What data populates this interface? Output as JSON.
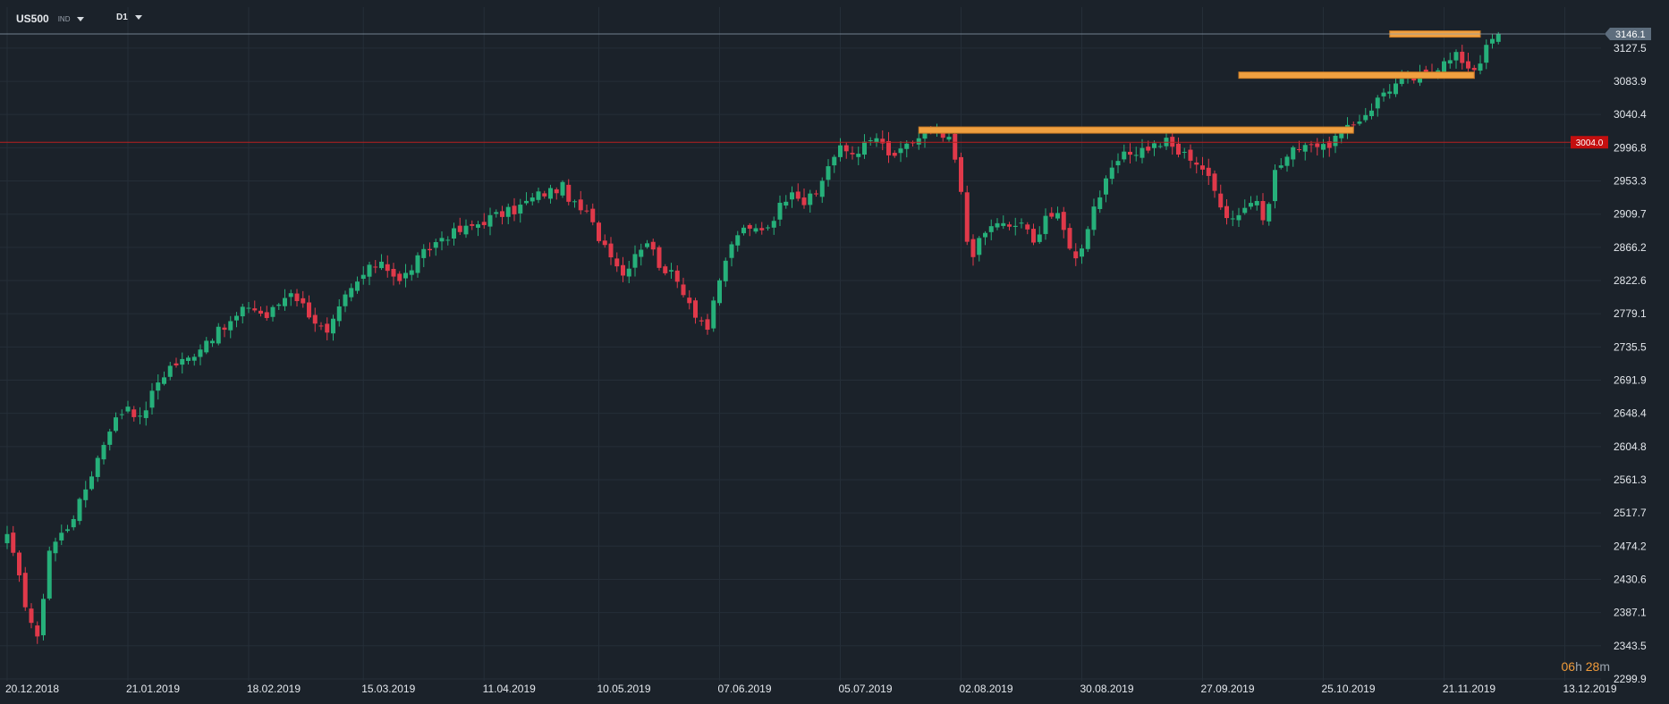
{
  "toolbar": {
    "symbol": "US500",
    "symbol_type": "IND",
    "timeframe": "D1"
  },
  "countdown": {
    "hours": "06",
    "h_unit": "h",
    "minutes": "28",
    "m_unit": "m"
  },
  "colors": {
    "background": "#1b222a",
    "grid": "#252e38",
    "up": "#26b07a",
    "down": "#e0394a",
    "zone": "#f0a040",
    "price_line": "#8fa0b0",
    "red_line": "#b81f1f"
  },
  "chart_data": {
    "type": "candlestick",
    "symbol": "US500",
    "timeframe": "D1",
    "ylim": [
      2290,
      3165
    ],
    "y_ticks": [
      "3127.5",
      "3083.9",
      "3040.4",
      "2996.8",
      "2953.3",
      "2909.7",
      "2866.2",
      "2822.6",
      "2779.1",
      "2735.5",
      "2691.9",
      "2648.4",
      "2604.8",
      "2561.3",
      "2517.7",
      "2474.2",
      "2430.6",
      "2387.1",
      "2343.5",
      "2299.9"
    ],
    "x_ticks": [
      "20.12.2018",
      "21.01.2019",
      "18.02.2019",
      "15.03.2019",
      "11.04.2019",
      "10.05.2019",
      "07.06.2019",
      "05.07.2019",
      "02.08.2019",
      "30.08.2019",
      "27.09.2019",
      "25.10.2019",
      "21.11.2019",
      "13.12.2019"
    ],
    "x_tick_index": [
      0,
      20,
      40,
      59,
      79,
      98,
      118,
      138,
      158,
      178,
      198,
      218,
      238,
      258
    ],
    "last_price": {
      "value": 3146.1,
      "label": "3146.1"
    },
    "horizontal_line": {
      "value": 3004.0,
      "label": "3004.0"
    },
    "resistance_zones": [
      {
        "from_index": 151,
        "to_index": 223,
        "value": 3020
      },
      {
        "from_index": 204,
        "to_index": 243,
        "value": 3092
      },
      {
        "from_index": 229,
        "to_index": 244,
        "value": 3146
      }
    ],
    "close_anchors": [
      [
        0,
        2490
      ],
      [
        3,
        2400
      ],
      [
        5,
        2350
      ],
      [
        7,
        2470
      ],
      [
        10,
        2500
      ],
      [
        12,
        2530
      ],
      [
        15,
        2590
      ],
      [
        17,
        2630
      ],
      [
        20,
        2660
      ],
      [
        22,
        2640
      ],
      [
        25,
        2690
      ],
      [
        27,
        2710
      ],
      [
        30,
        2720
      ],
      [
        33,
        2745
      ],
      [
        36,
        2760
      ],
      [
        40,
        2790
      ],
      [
        43,
        2775
      ],
      [
        47,
        2810
      ],
      [
        50,
        2780
      ],
      [
        53,
        2750
      ],
      [
        56,
        2800
      ],
      [
        59,
        2830
      ],
      [
        62,
        2850
      ],
      [
        65,
        2820
      ],
      [
        68,
        2850
      ],
      [
        72,
        2880
      ],
      [
        76,
        2890
      ],
      [
        80,
        2905
      ],
      [
        84,
        2915
      ],
      [
        88,
        2935
      ],
      [
        92,
        2945
      ],
      [
        94,
        2920
      ],
      [
        96,
        2910
      ],
      [
        98,
        2880
      ],
      [
        100,
        2860
      ],
      [
        102,
        2830
      ],
      [
        104,
        2860
      ],
      [
        106,
        2875
      ],
      [
        108,
        2845
      ],
      [
        110,
        2830
      ],
      [
        112,
        2810
      ],
      [
        114,
        2780
      ],
      [
        116,
        2760
      ],
      [
        117,
        2790
      ],
      [
        119,
        2850
      ],
      [
        121,
        2885
      ],
      [
        124,
        2890
      ],
      [
        126,
        2895
      ],
      [
        128,
        2920
      ],
      [
        130,
        2945
      ],
      [
        132,
        2925
      ],
      [
        134,
        2935
      ],
      [
        136,
        2975
      ],
      [
        138,
        2995
      ],
      [
        140,
        2990
      ],
      [
        142,
        3000
      ],
      [
        144,
        3010
      ],
      [
        146,
        2985
      ],
      [
        148,
        2990
      ],
      [
        150,
        3005
      ],
      [
        152,
        3015
      ],
      [
        154,
        3015
      ],
      [
        156,
        3005
      ],
      [
        157,
        2980
      ],
      [
        158,
        2935
      ],
      [
        159,
        2875
      ],
      [
        160,
        2860
      ],
      [
        162,
        2885
      ],
      [
        164,
        2900
      ],
      [
        166,
        2890
      ],
      [
        168,
        2900
      ],
      [
        170,
        2870
      ],
      [
        172,
        2910
      ],
      [
        174,
        2905
      ],
      [
        176,
        2870
      ],
      [
        177,
        2850
      ],
      [
        178,
        2870
      ],
      [
        180,
        2920
      ],
      [
        182,
        2950
      ],
      [
        184,
        2980
      ],
      [
        186,
        2990
      ],
      [
        188,
        2995
      ],
      [
        190,
        3000
      ],
      [
        192,
        3005
      ],
      [
        194,
        2990
      ],
      [
        196,
        2985
      ],
      [
        198,
        2970
      ],
      [
        200,
        2940
      ],
      [
        202,
        2910
      ],
      [
        203,
        2905
      ],
      [
        205,
        2920
      ],
      [
        207,
        2930
      ],
      [
        208,
        2895
      ],
      [
        210,
        2965
      ],
      [
        212,
        2985
      ],
      [
        214,
        3000
      ],
      [
        216,
        3005
      ],
      [
        218,
        2995
      ],
      [
        220,
        3010
      ],
      [
        222,
        3020
      ],
      [
        224,
        3035
      ],
      [
        226,
        3050
      ],
      [
        228,
        3070
      ],
      [
        230,
        3080
      ],
      [
        232,
        3085
      ],
      [
        234,
        3090
      ],
      [
        236,
        3095
      ],
      [
        238,
        3115
      ],
      [
        240,
        3120
      ],
      [
        242,
        3095
      ],
      [
        244,
        3110
      ],
      [
        245,
        3135
      ],
      [
        246,
        3145
      ],
      [
        247,
        3146
      ]
    ],
    "candle_count": 248
  }
}
